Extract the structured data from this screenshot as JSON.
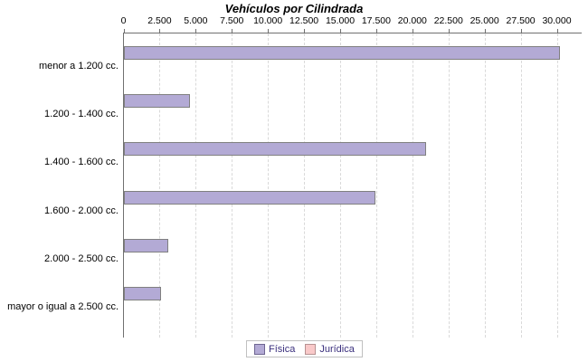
{
  "title": "Vehículos por Cilindrada",
  "legend": {
    "items": [
      {
        "label": "Física",
        "fill": "#b3aad5",
        "border": "#6e6591"
      },
      {
        "label": "Jurídica",
        "fill": "#f9c9c9",
        "border": "#b79292"
      }
    ]
  },
  "chart_data": {
    "type": "bar",
    "orientation": "horizontal",
    "title": "Vehículos por Cilindrada",
    "categories": [
      "menor a 1.200 cc.",
      "1.200 - 1.400 cc.",
      "1.400 - 1.600 cc.",
      "1.600 - 2.000 cc.",
      "2.000 - 2.500 cc.",
      "mayor o igual a 2.500 cc."
    ],
    "series": [
      {
        "name": "Física",
        "values": [
          30100,
          4500,
          20800,
          17300,
          3000,
          2500
        ],
        "color": "#b3aad5",
        "border": "#808080"
      },
      {
        "name": "Jurídica",
        "values": [
          0,
          0,
          0,
          0,
          0,
          0
        ],
        "color": "#f9c9c9",
        "border": "#b79292"
      }
    ],
    "x_ticks": [
      "0",
      "2.500",
      "5.000",
      "7.500",
      "10.000",
      "12.500",
      "15.000",
      "17.500",
      "20.000",
      "22.500",
      "25.000",
      "27.500",
      "30.000"
    ],
    "xlim": [
      0,
      30000
    ],
    "xlabel": "",
    "ylabel": "",
    "grid": "vertical-dashed",
    "legend_position": "bottom"
  }
}
